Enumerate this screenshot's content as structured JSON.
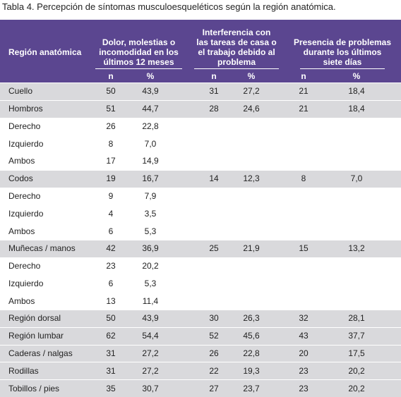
{
  "title": "Tabla 4. Percepción de síntomas musculoesqueléticos según la región anatómica.",
  "table": {
    "header": {
      "region": "Región anatómica",
      "groups": [
        {
          "lines": [
            "Dolor, molestias o",
            "incomodidad en los",
            "últimos 12 meses"
          ],
          "sub": [
            "n",
            "%"
          ]
        },
        {
          "lines": [
            "Interferencia con",
            "las tareas de casa o",
            "el trabajo debido al",
            "problema"
          ],
          "sub": [
            "n",
            "%"
          ]
        },
        {
          "lines": [
            "Presencia de problemas",
            "durante los últimos",
            "siete días"
          ],
          "sub": [
            "n",
            "%"
          ]
        }
      ]
    },
    "rows": [
      [
        "Cuello",
        "50",
        "43,9",
        "31",
        "27,2",
        "21",
        "18,4"
      ],
      [
        "Hombros",
        "51",
        "44,7",
        "28",
        "24,6",
        "21",
        "18,4"
      ],
      [
        "Derecho",
        "26",
        "22,8",
        null,
        null,
        null,
        null
      ],
      [
        "Izquierdo",
        "8",
        "7,0",
        null,
        null,
        null,
        null
      ],
      [
        "Ambos",
        "17",
        "14,9",
        null,
        null,
        null,
        null
      ],
      [
        "Codos",
        "19",
        "16,7",
        "14",
        "12,3",
        "8",
        "7,0"
      ],
      [
        "Derecho",
        "9",
        "7,9",
        null,
        null,
        null,
        null
      ],
      [
        "Izquierdo",
        "4",
        "3,5",
        null,
        null,
        null,
        null
      ],
      [
        "Ambos",
        "6",
        "5,3",
        null,
        null,
        null,
        null
      ],
      [
        "Muñecas / manos",
        "42",
        "36,9",
        "25",
        "21,9",
        "15",
        "13,2"
      ],
      [
        "Derecho",
        "23",
        "20,2",
        null,
        null,
        null,
        null
      ],
      [
        "Izquierdo",
        "6",
        "5,3",
        null,
        null,
        null,
        null
      ],
      [
        "Ambos",
        "13",
        "11,4",
        null,
        null,
        null,
        null
      ],
      [
        "Región dorsal",
        "50",
        "43,9",
        "30",
        "26,3",
        "32",
        "28,1"
      ],
      [
        "Región lumbar",
        "62",
        "54,4",
        "52",
        "45,6",
        "43",
        "37,7"
      ],
      [
        "Caderas / nalgas",
        "31",
        "27,2",
        "26",
        "22,8",
        "20",
        "17,5"
      ],
      [
        "Rodillas",
        "31",
        "27,2",
        "22",
        "19,3",
        "23",
        "20,2"
      ],
      [
        "Tobillos / pies",
        "35",
        "30,7",
        "27",
        "23,7",
        "23",
        "20,2"
      ]
    ]
  }
}
